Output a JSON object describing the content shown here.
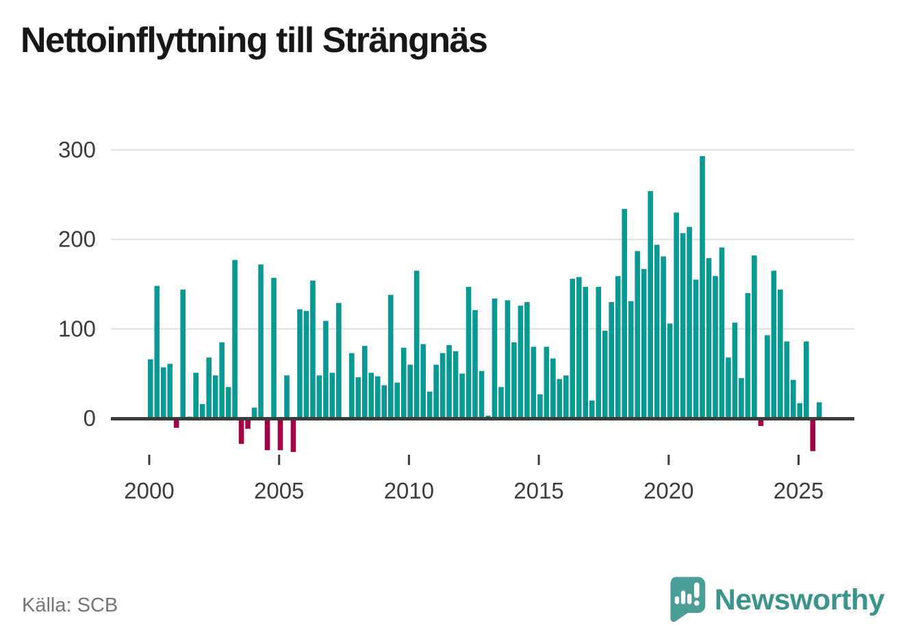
{
  "title": "Nettoinflyttning till Strängnäs",
  "source": "Källa: SCB",
  "brand": {
    "name": "Newsworthy",
    "icon": "speech-bubble-bar-chart-icon",
    "text_color": "#3b948c",
    "bubble_color": "#4a9e97"
  },
  "chart_data": {
    "type": "bar",
    "title": "Nettoinflyttning till Strängnäs",
    "frequency": "quarterly",
    "start_year": 2000,
    "periods_per_year": 4,
    "categories": [
      "2000Q1",
      "2000Q2",
      "2000Q3",
      "2000Q4",
      "2001Q1",
      "2001Q2",
      "2001Q3",
      "2001Q4",
      "2002Q1",
      "2002Q2",
      "2002Q3",
      "2002Q4",
      "2003Q1",
      "2003Q2",
      "2003Q3",
      "2003Q4",
      "2004Q1",
      "2004Q2",
      "2004Q3",
      "2004Q4",
      "2005Q1",
      "2005Q2",
      "2005Q3",
      "2005Q4",
      "2006Q1",
      "2006Q2",
      "2006Q3",
      "2006Q4",
      "2007Q1",
      "2007Q2",
      "2007Q3",
      "2007Q4",
      "2008Q1",
      "2008Q2",
      "2008Q3",
      "2008Q4",
      "2009Q1",
      "2009Q2",
      "2009Q3",
      "2009Q4",
      "2010Q1",
      "2010Q2",
      "2010Q3",
      "2010Q4",
      "2011Q1",
      "2011Q2",
      "2011Q3",
      "2011Q4",
      "2012Q1",
      "2012Q2",
      "2012Q3",
      "2012Q4",
      "2013Q1",
      "2013Q2",
      "2013Q3",
      "2013Q4",
      "2014Q1",
      "2014Q2",
      "2014Q3",
      "2014Q4",
      "2015Q1",
      "2015Q2",
      "2015Q3",
      "2015Q4",
      "2016Q1",
      "2016Q2",
      "2016Q3",
      "2016Q4",
      "2017Q1",
      "2017Q2",
      "2017Q3",
      "2017Q4",
      "2018Q1",
      "2018Q2",
      "2018Q3",
      "2018Q4",
      "2019Q1",
      "2019Q2",
      "2019Q3",
      "2019Q4",
      "2020Q1",
      "2020Q2",
      "2020Q3",
      "2020Q4",
      "2021Q1",
      "2021Q2",
      "2021Q3",
      "2021Q4",
      "2022Q1",
      "2022Q2",
      "2022Q3",
      "2022Q4",
      "2023Q1",
      "2023Q2",
      "2023Q3",
      "2023Q4",
      "2024Q1",
      "2024Q2",
      "2024Q3",
      "2024Q4",
      "2025Q1",
      "2025Q2",
      "2025Q3",
      "2025Q4"
    ],
    "values": [
      66,
      148,
      57,
      61,
      -9,
      144,
      2,
      51,
      16,
      68,
      48,
      85,
      35,
      177,
      -27,
      -10,
      12,
      172,
      -34,
      157,
      -34,
      48,
      -36,
      122,
      120,
      154,
      48,
      109,
      51,
      129,
      0,
      73,
      46,
      81,
      51,
      47,
      37,
      138,
      40,
      79,
      60,
      165,
      83,
      30,
      60,
      73,
      82,
      75,
      50,
      147,
      121,
      53,
      3,
      134,
      35,
      132,
      85,
      126,
      130,
      80,
      27,
      80,
      67,
      44,
      48,
      156,
      158,
      147,
      20,
      147,
      98,
      130,
      159,
      234,
      131,
      187,
      167,
      254,
      194,
      181,
      106,
      230,
      207,
      214,
      155,
      293,
      179,
      159,
      191,
      68,
      107,
      45,
      140,
      182,
      -7,
      93,
      165,
      144,
      86,
      43,
      17,
      86,
      -35,
      18
    ],
    "y_tick_labels": [
      "0",
      "100",
      "200",
      "300"
    ],
    "x_tick_labels": [
      "2000",
      "2005",
      "2010",
      "2015",
      "2020",
      "2025"
    ],
    "ylim": [
      -45,
      310
    ],
    "grid": true,
    "legend": false,
    "colors": {
      "positive": "#089a92",
      "negative": "#a30048",
      "gridline": "#e0e0e0",
      "axis_line": "#3b3b3b",
      "tick_text": "#3c3c3c"
    }
  }
}
